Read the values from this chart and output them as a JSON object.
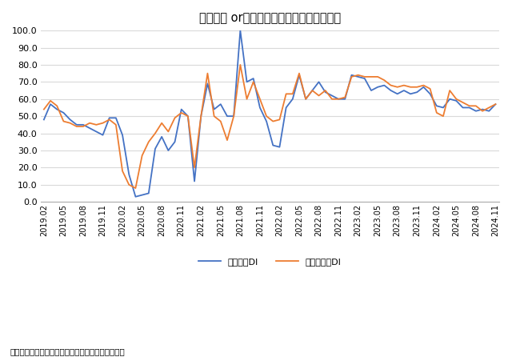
{
  "title": "「外国人 orインバウンド」関連ＤＩの推移",
  "source_note": "（出所）内閣府「景気ウォッチャー調査」より作成",
  "legend_current": "現状判断DI",
  "legend_leading": "先行き判断DI",
  "color_current": "#4472C4",
  "color_leading": "#ED7D31",
  "ylim": [
    0.0,
    100.0
  ],
  "yticks": [
    0.0,
    10.0,
    20.0,
    30.0,
    40.0,
    50.0,
    60.0,
    70.0,
    80.0,
    90.0,
    100.0
  ],
  "background_color": "#FFFFFF",
  "grid_color": "#D9D9D9",
  "values_current": [
    48,
    57,
    54,
    52,
    48,
    45,
    45,
    43,
    41,
    39,
    49,
    49,
    39,
    16,
    3,
    4,
    5,
    31,
    38,
    30,
    35,
    54,
    50,
    12,
    50,
    69,
    54,
    57,
    50,
    50,
    100,
    70,
    72,
    55,
    47,
    33,
    32,
    55,
    60,
    74,
    60,
    65,
    70,
    64,
    62,
    60,
    60,
    74,
    73,
    72,
    65,
    67,
    68,
    65,
    63,
    65,
    63,
    64,
    67,
    63,
    56,
    55,
    60,
    59,
    55,
    55,
    53,
    54,
    53,
    57
  ],
  "values_leading": [
    54,
    59,
    56,
    47,
    46,
    44,
    44,
    46,
    45,
    46,
    48,
    45,
    18,
    10,
    8,
    27,
    35,
    40,
    46,
    41,
    49,
    52,
    50,
    20,
    50,
    75,
    50,
    47,
    36,
    50,
    80,
    60,
    70,
    60,
    50,
    47,
    48,
    63,
    63,
    75,
    60,
    65,
    62,
    65,
    60,
    60,
    61,
    73,
    74,
    73,
    73,
    73,
    71,
    68,
    67,
    68,
    67,
    67,
    68,
    66,
    52,
    50,
    65,
    60,
    58,
    56,
    56,
    53,
    55,
    57
  ]
}
